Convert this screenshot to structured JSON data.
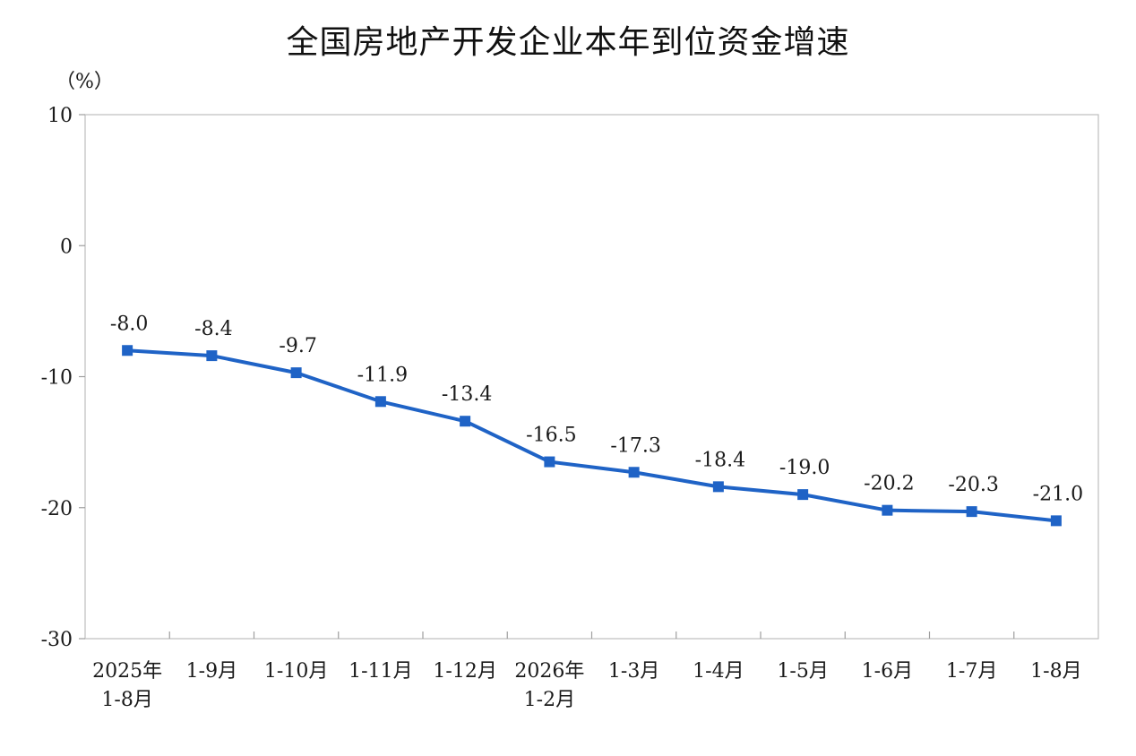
{
  "chart_data": {
    "type": "line",
    "title": "全国房地产开发企业本年到位资金增速",
    "ylabel": "（%）",
    "xlabel": "",
    "ylim": [
      -30,
      10
    ],
    "yticks": [
      10,
      0,
      -10,
      -20,
      -30
    ],
    "categories": [
      [
        "2025年",
        "1-8月"
      ],
      [
        "1-9月"
      ],
      [
        "1-10月"
      ],
      [
        "1-11月"
      ],
      [
        "1-12月"
      ],
      [
        "2026年",
        "1-2月"
      ],
      [
        "1-3月"
      ],
      [
        "1-4月"
      ],
      [
        "1-5月"
      ],
      [
        "1-6月"
      ],
      [
        "1-7月"
      ],
      [
        "1-8月"
      ]
    ],
    "values": [
      -8.0,
      -8.4,
      -9.7,
      -11.9,
      -13.4,
      -16.5,
      -17.3,
      -18.4,
      -19.0,
      -20.2,
      -20.3,
      -21.0
    ],
    "data_labels": [
      "-8.0",
      "-8.4",
      "-9.7",
      "-11.9",
      "-13.4",
      "-16.5",
      "-17.3",
      "-18.4",
      "-19.0",
      "-20.2",
      "-20.3",
      "-21.0"
    ],
    "line_color": "#1f63c6",
    "grid": false,
    "legend": "none"
  }
}
